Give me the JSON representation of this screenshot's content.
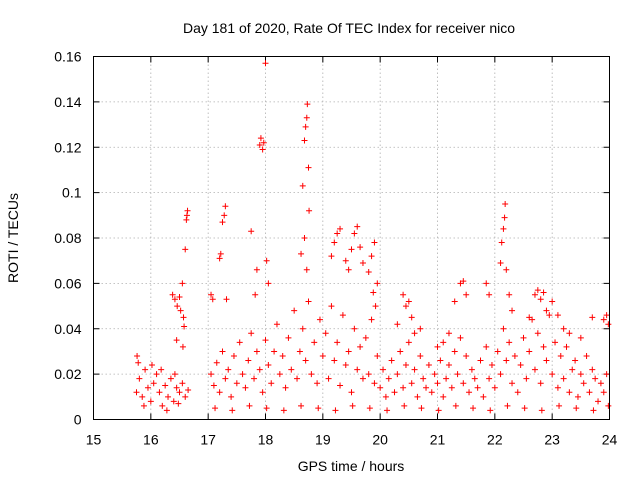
{
  "chart_data": {
    "type": "scatter",
    "title": "Day 181 of 2020, Rate Of TEC Index for receiver nico",
    "xlabel": "GPS time / hours",
    "ylabel": "ROTI / TECUs",
    "xlim": [
      15,
      24
    ],
    "ylim": [
      0,
      0.16
    ],
    "grid": true,
    "marker": "+",
    "color": "#ff0000",
    "x_ticks": [
      15,
      16,
      17,
      18,
      19,
      20,
      21,
      22,
      23,
      24
    ],
    "x_tick_labels": [
      "15",
      "16",
      "17",
      "18",
      "19",
      "20",
      "21",
      "22",
      "23",
      "24"
    ],
    "y_ticks": [
      0,
      0.02,
      0.04,
      0.06,
      0.08,
      0.1,
      0.12,
      0.14,
      0.16
    ],
    "y_tick_labels": [
      "0",
      "0.02",
      "0.04",
      "0.06",
      "0.08",
      "0.1",
      "0.12",
      "0.14",
      "0.16"
    ],
    "series": [
      {
        "name": "ROTI",
        "points": [
          [
            15.75,
            0.012
          ],
          [
            15.8,
            0.018
          ],
          [
            15.85,
            0.01
          ],
          [
            15.9,
            0.022
          ],
          [
            15.95,
            0.014
          ],
          [
            16.0,
            0.008
          ],
          [
            16.05,
            0.016
          ],
          [
            16.1,
            0.02
          ],
          [
            16.15,
            0.012
          ],
          [
            16.2,
            0.006
          ],
          [
            16.25,
            0.015
          ],
          [
            16.3,
            0.01
          ],
          [
            16.35,
            0.018
          ],
          [
            16.4,
            0.008
          ],
          [
            16.45,
            0.014
          ],
          [
            16.5,
            0.012
          ],
          [
            16.55,
            0.016
          ],
          [
            16.6,
            0.01
          ],
          [
            16.65,
            0.013
          ],
          [
            15.78,
            0.025
          ],
          [
            16.02,
            0.024
          ],
          [
            16.18,
            0.022
          ],
          [
            16.42,
            0.02
          ],
          [
            15.88,
            0.006
          ],
          [
            16.28,
            0.004
          ],
          [
            16.48,
            0.007
          ],
          [
            15.76,
            0.028
          ],
          [
            16.38,
            0.055
          ],
          [
            16.42,
            0.053
          ],
          [
            16.46,
            0.05
          ],
          [
            16.5,
            0.054
          ],
          [
            16.52,
            0.048
          ],
          [
            16.55,
            0.06
          ],
          [
            16.57,
            0.045
          ],
          [
            16.58,
            0.041
          ],
          [
            16.6,
            0.075
          ],
          [
            16.62,
            0.088
          ],
          [
            16.63,
            0.09
          ],
          [
            16.64,
            0.092
          ],
          [
            16.45,
            0.035
          ],
          [
            16.56,
            0.032
          ],
          [
            17.05,
            0.055
          ],
          [
            17.08,
            0.053
          ],
          [
            17.2,
            0.071
          ],
          [
            17.22,
            0.073
          ],
          [
            17.25,
            0.087
          ],
          [
            17.28,
            0.09
          ],
          [
            17.3,
            0.094
          ],
          [
            17.32,
            0.053
          ],
          [
            17.75,
            0.083
          ],
          [
            17.85,
            0.066
          ],
          [
            17.82,
            0.055
          ],
          [
            17.9,
            0.121
          ],
          [
            17.92,
            0.124
          ],
          [
            17.95,
            0.119
          ],
          [
            17.97,
            0.122
          ],
          [
            18.0,
            0.157
          ],
          [
            18.02,
            0.07
          ],
          [
            18.05,
            0.06
          ],
          [
            18.62,
            0.073
          ],
          [
            18.65,
            0.103
          ],
          [
            18.68,
            0.123
          ],
          [
            18.7,
            0.129
          ],
          [
            18.72,
            0.133
          ],
          [
            18.73,
            0.139
          ],
          [
            18.75,
            0.111
          ],
          [
            18.76,
            0.092
          ],
          [
            18.68,
            0.08
          ],
          [
            18.72,
            0.066
          ],
          [
            19.15,
            0.072
          ],
          [
            19.2,
            0.078
          ],
          [
            19.25,
            0.082
          ],
          [
            19.3,
            0.084
          ],
          [
            19.4,
            0.07
          ],
          [
            19.45,
            0.066
          ],
          [
            19.5,
            0.075
          ],
          [
            19.55,
            0.082
          ],
          [
            19.6,
            0.085
          ],
          [
            19.65,
            0.076
          ],
          [
            19.7,
            0.069
          ],
          [
            19.8,
            0.065
          ],
          [
            19.85,
            0.072
          ],
          [
            19.9,
            0.078
          ],
          [
            19.95,
            0.06
          ],
          [
            19.88,
            0.056
          ],
          [
            19.92,
            0.05
          ],
          [
            20.3,
            0.042
          ],
          [
            20.4,
            0.055
          ],
          [
            20.45,
            0.05
          ],
          [
            20.5,
            0.052
          ],
          [
            20.55,
            0.045
          ],
          [
            20.6,
            0.038
          ],
          [
            20.7,
            0.04
          ],
          [
            21.0,
            0.032
          ],
          [
            21.1,
            0.034
          ],
          [
            21.3,
            0.052
          ],
          [
            21.4,
            0.06
          ],
          [
            21.45,
            0.061
          ],
          [
            21.5,
            0.055
          ],
          [
            21.2,
            0.038
          ],
          [
            21.85,
            0.06
          ],
          [
            21.9,
            0.055
          ],
          [
            22.1,
            0.069
          ],
          [
            22.12,
            0.078
          ],
          [
            22.15,
            0.084
          ],
          [
            22.17,
            0.089
          ],
          [
            22.18,
            0.095
          ],
          [
            22.2,
            0.066
          ],
          [
            22.25,
            0.055
          ],
          [
            22.3,
            0.048
          ],
          [
            22.6,
            0.045
          ],
          [
            22.7,
            0.055
          ],
          [
            22.75,
            0.057
          ],
          [
            22.8,
            0.053
          ],
          [
            22.85,
            0.056
          ],
          [
            22.9,
            0.048
          ],
          [
            23.0,
            0.052
          ],
          [
            23.1,
            0.046
          ],
          [
            23.2,
            0.04
          ],
          [
            23.3,
            0.038
          ],
          [
            23.5,
            0.036
          ],
          [
            23.7,
            0.045
          ],
          [
            23.9,
            0.044
          ],
          [
            23.95,
            0.046
          ],
          [
            23.98,
            0.042
          ],
          [
            17.05,
            0.02
          ],
          [
            17.1,
            0.015
          ],
          [
            17.15,
            0.025
          ],
          [
            17.2,
            0.012
          ],
          [
            17.25,
            0.03
          ],
          [
            17.3,
            0.018
          ],
          [
            17.35,
            0.022
          ],
          [
            17.4,
            0.01
          ],
          [
            17.45,
            0.028
          ],
          [
            17.5,
            0.016
          ],
          [
            17.55,
            0.034
          ],
          [
            17.6,
            0.02
          ],
          [
            17.65,
            0.014
          ],
          [
            17.7,
            0.026
          ],
          [
            17.75,
            0.038
          ],
          [
            17.8,
            0.018
          ],
          [
            17.85,
            0.03
          ],
          [
            17.9,
            0.022
          ],
          [
            17.95,
            0.012
          ],
          [
            18.0,
            0.035
          ],
          [
            18.05,
            0.024
          ],
          [
            18.1,
            0.016
          ],
          [
            18.15,
            0.03
          ],
          [
            18.2,
            0.042
          ],
          [
            18.25,
            0.02
          ],
          [
            18.3,
            0.028
          ],
          [
            18.35,
            0.014
          ],
          [
            18.4,
            0.036
          ],
          [
            18.45,
            0.022
          ],
          [
            18.5,
            0.048
          ],
          [
            18.55,
            0.018
          ],
          [
            18.6,
            0.03
          ],
          [
            18.65,
            0.04
          ],
          [
            18.7,
            0.026
          ],
          [
            18.75,
            0.052
          ],
          [
            18.8,
            0.02
          ],
          [
            18.85,
            0.034
          ],
          [
            18.9,
            0.016
          ],
          [
            18.95,
            0.044
          ],
          [
            19.0,
            0.028
          ],
          [
            19.05,
            0.038
          ],
          [
            19.1,
            0.018
          ],
          [
            19.15,
            0.05
          ],
          [
            19.2,
            0.026
          ],
          [
            19.25,
            0.034
          ],
          [
            19.3,
            0.015
          ],
          [
            19.35,
            0.046
          ],
          [
            19.4,
            0.024
          ],
          [
            19.45,
            0.03
          ],
          [
            19.5,
            0.012
          ],
          [
            19.55,
            0.04
          ],
          [
            19.6,
            0.022
          ],
          [
            19.65,
            0.032
          ],
          [
            19.7,
            0.018
          ],
          [
            19.75,
            0.036
          ],
          [
            19.8,
            0.02
          ],
          [
            19.85,
            0.044
          ],
          [
            19.9,
            0.016
          ],
          [
            19.95,
            0.028
          ],
          [
            20.0,
            0.014
          ],
          [
            20.05,
            0.022
          ],
          [
            20.1,
            0.01
          ],
          [
            20.15,
            0.018
          ],
          [
            20.2,
            0.026
          ],
          [
            20.25,
            0.012
          ],
          [
            20.3,
            0.02
          ],
          [
            20.35,
            0.03
          ],
          [
            20.4,
            0.014
          ],
          [
            20.45,
            0.024
          ],
          [
            20.5,
            0.034
          ],
          [
            20.55,
            0.016
          ],
          [
            20.6,
            0.022
          ],
          [
            20.65,
            0.01
          ],
          [
            20.7,
            0.028
          ],
          [
            20.75,
            0.018
          ],
          [
            20.8,
            0.014
          ],
          [
            20.85,
            0.024
          ],
          [
            20.9,
            0.012
          ],
          [
            20.95,
            0.02
          ],
          [
            21.0,
            0.016
          ],
          [
            21.05,
            0.026
          ],
          [
            21.1,
            0.01
          ],
          [
            21.15,
            0.018
          ],
          [
            21.2,
            0.024
          ],
          [
            21.25,
            0.014
          ],
          [
            21.3,
            0.03
          ],
          [
            21.35,
            0.02
          ],
          [
            21.4,
            0.036
          ],
          [
            21.45,
            0.016
          ],
          [
            21.5,
            0.028
          ],
          [
            21.55,
            0.012
          ],
          [
            21.6,
            0.022
          ],
          [
            21.65,
            0.018
          ],
          [
            21.7,
            0.014
          ],
          [
            21.75,
            0.026
          ],
          [
            21.8,
            0.01
          ],
          [
            21.85,
            0.032
          ],
          [
            21.9,
            0.018
          ],
          [
            21.95,
            0.024
          ],
          [
            22.0,
            0.014
          ],
          [
            22.05,
            0.03
          ],
          [
            22.1,
            0.02
          ],
          [
            22.15,
            0.04
          ],
          [
            22.2,
            0.026
          ],
          [
            22.25,
            0.034
          ],
          [
            22.3,
            0.016
          ],
          [
            22.35,
            0.028
          ],
          [
            22.4,
            0.012
          ],
          [
            22.45,
            0.024
          ],
          [
            22.5,
            0.036
          ],
          [
            22.55,
            0.018
          ],
          [
            22.6,
            0.03
          ],
          [
            22.65,
            0.044
          ],
          [
            22.7,
            0.022
          ],
          [
            22.75,
            0.038
          ],
          [
            22.8,
            0.016
          ],
          [
            22.85,
            0.032
          ],
          [
            22.9,
            0.026
          ],
          [
            22.95,
            0.046
          ],
          [
            23.0,
            0.02
          ],
          [
            23.05,
            0.034
          ],
          [
            23.1,
            0.014
          ],
          [
            23.15,
            0.028
          ],
          [
            23.2,
            0.018
          ],
          [
            23.25,
            0.032
          ],
          [
            23.3,
            0.012
          ],
          [
            23.35,
            0.022
          ],
          [
            23.4,
            0.026
          ],
          [
            23.45,
            0.01
          ],
          [
            23.5,
            0.02
          ],
          [
            23.55,
            0.016
          ],
          [
            23.6,
            0.028
          ],
          [
            23.65,
            0.012
          ],
          [
            23.7,
            0.022
          ],
          [
            23.75,
            0.018
          ],
          [
            23.8,
            0.008
          ],
          [
            23.85,
            0.016
          ],
          [
            23.9,
            0.012
          ],
          [
            23.95,
            0.02
          ],
          [
            23.98,
            0.006
          ],
          [
            17.12,
            0.005
          ],
          [
            17.42,
            0.004
          ],
          [
            17.72,
            0.006
          ],
          [
            18.02,
            0.005
          ],
          [
            18.32,
            0.004
          ],
          [
            18.62,
            0.006
          ],
          [
            18.92,
            0.005
          ],
          [
            19.22,
            0.004
          ],
          [
            19.52,
            0.006
          ],
          [
            19.82,
            0.005
          ],
          [
            20.12,
            0.004
          ],
          [
            20.42,
            0.006
          ],
          [
            20.72,
            0.005
          ],
          [
            21.02,
            0.004
          ],
          [
            21.32,
            0.006
          ],
          [
            21.62,
            0.005
          ],
          [
            21.92,
            0.004
          ],
          [
            22.22,
            0.006
          ],
          [
            22.52,
            0.005
          ],
          [
            22.82,
            0.004
          ],
          [
            23.12,
            0.006
          ],
          [
            23.42,
            0.005
          ],
          [
            23.72,
            0.004
          ]
        ]
      }
    ]
  }
}
